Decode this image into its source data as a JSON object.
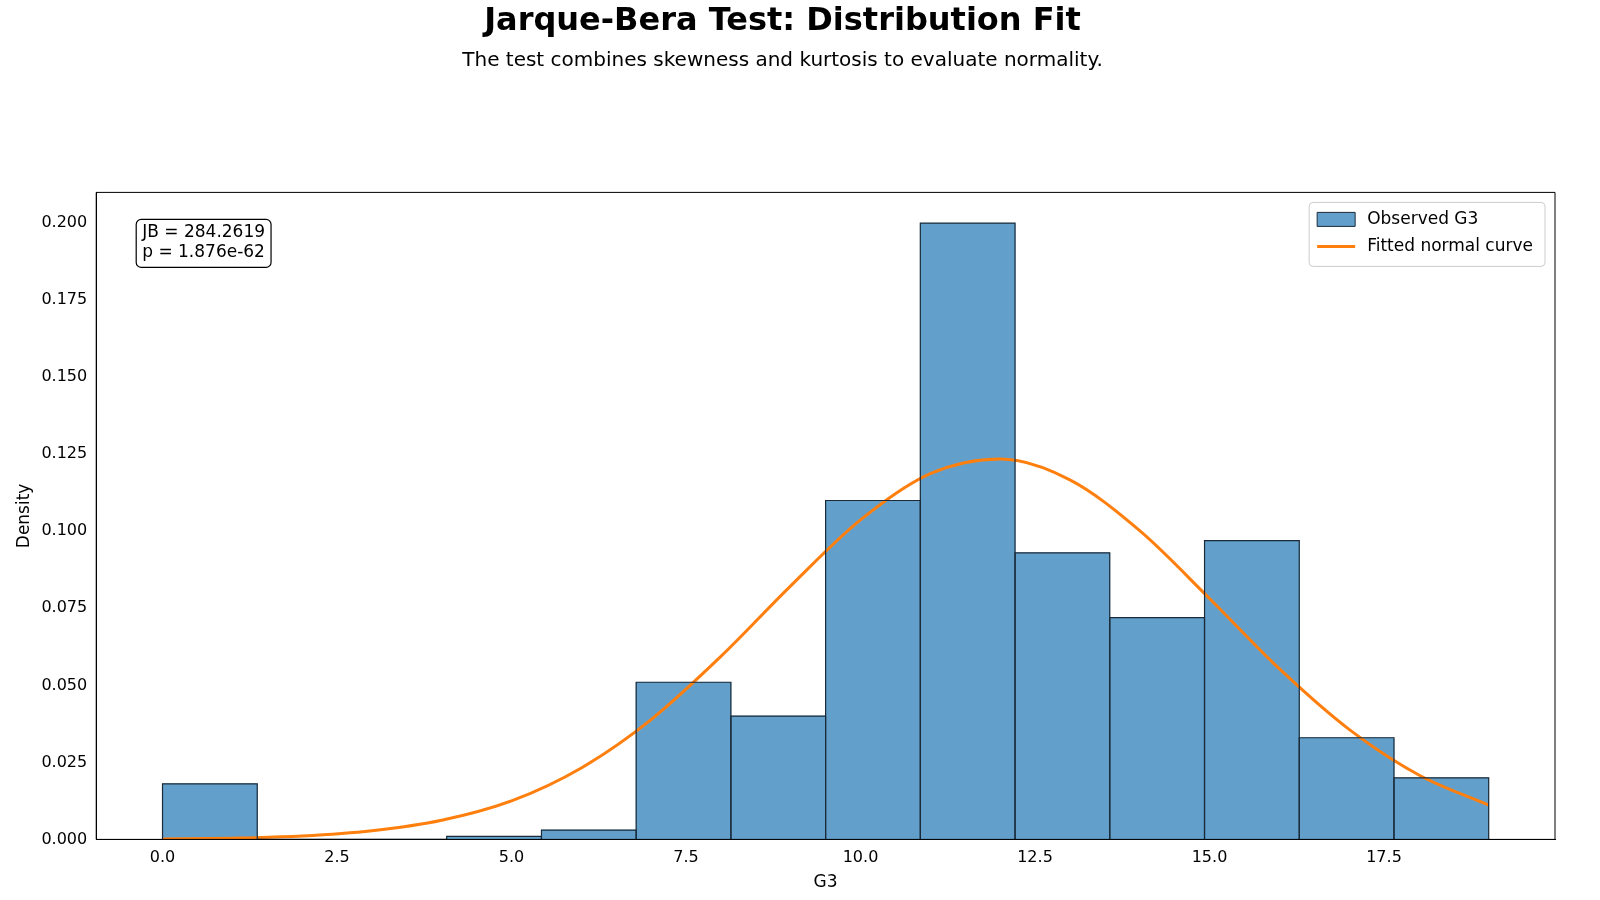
{
  "chart_data": {
    "type": "histogram",
    "title": "Jarque-Bera Test: Distribution Fit",
    "subtitle": "The test combines skewness and kurtosis to evaluate normality.",
    "xlabel": "G3",
    "ylabel": "Density",
    "bins": [
      0,
      1.357,
      2.714,
      4.071,
      5.429,
      6.786,
      8.143,
      9.5,
      10.857,
      12.214,
      13.571,
      14.929,
      16.286,
      17.643,
      19
    ],
    "series": [
      {
        "name": "Observed G3",
        "color": "#62a0cb",
        "values": [
          0.018,
          0,
          0,
          0.001,
          0.003,
          0.051,
          0.04,
          0.11,
          0.2,
          0.093,
          0.072,
          0.097,
          0.033,
          0.02
        ]
      },
      {
        "name": "Fitted normal curve",
        "type": "line",
        "color": "#ff7f0e",
        "x": [
          0,
          1,
          2,
          3,
          4,
          5,
          6,
          7,
          8,
          9,
          10,
          11,
          12,
          13,
          14,
          15,
          16,
          17,
          18,
          19
        ],
        "values": [
          0.0001,
          0.0004,
          0.0011,
          0.0028,
          0.0062,
          0.0125,
          0.0232,
          0.0389,
          0.0594,
          0.0823,
          0.1037,
          0.1187,
          0.1235,
          0.1167,
          0.1002,
          0.0782,
          0.0554,
          0.0357,
          0.0209,
          0.0111
        ]
      }
    ],
    "xlim": [
      -0.95,
      19.95
    ],
    "xticks": [
      {
        "value": 0,
        "label": "0.0"
      },
      {
        "value": 2.5,
        "label": "2.5"
      },
      {
        "value": 5,
        "label": "5.0"
      },
      {
        "value": 7.5,
        "label": "7.5"
      },
      {
        "value": 10,
        "label": "10.0"
      },
      {
        "value": 12.5,
        "label": "12.5"
      },
      {
        "value": 15,
        "label": "15.0"
      },
      {
        "value": 17.5,
        "label": "17.5"
      }
    ],
    "ylim": [
      0,
      0.21
    ],
    "yticks": [
      {
        "value": 0,
        "label": "0.000"
      },
      {
        "value": 0.025,
        "label": "0.025"
      },
      {
        "value": 0.05,
        "label": "0.050"
      },
      {
        "value": 0.075,
        "label": "0.075"
      },
      {
        "value": 0.1,
        "label": "0.100"
      },
      {
        "value": 0.125,
        "label": "0.125"
      },
      {
        "value": 0.15,
        "label": "0.150"
      },
      {
        "value": 0.175,
        "label": "0.175"
      },
      {
        "value": 0.2,
        "label": "0.200"
      }
    ],
    "grid": false,
    "legend": "top right",
    "annotations": [
      "JB = 284.2619\np = 1.876e-62"
    ]
  }
}
